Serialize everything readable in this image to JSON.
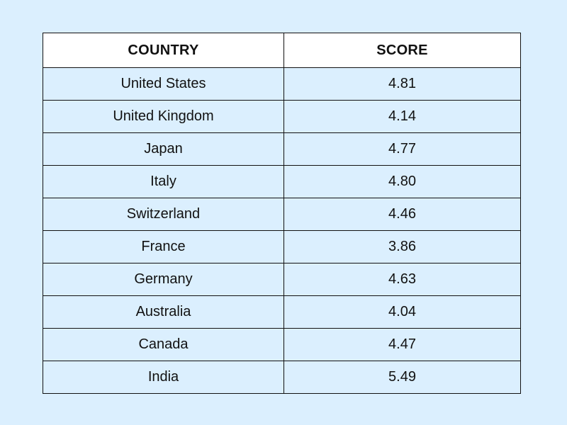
{
  "colors": {
    "background": "#dbeffe",
    "header_fill": "#ffffff",
    "border": "#111111",
    "text": "#111111"
  },
  "chart_data": {
    "type": "table",
    "columns": [
      "COUNTRY",
      "SCORE"
    ],
    "rows": [
      [
        "United States",
        "4.81"
      ],
      [
        "United Kingdom",
        "4.14"
      ],
      [
        "Japan",
        "4.77"
      ],
      [
        "Italy",
        "4.80"
      ],
      [
        "Switzerland",
        "4.46"
      ],
      [
        "France",
        "3.86"
      ],
      [
        "Germany",
        "4.63"
      ],
      [
        "Australia",
        "4.04"
      ],
      [
        "Canada",
        "4.47"
      ],
      [
        "India",
        "5.49"
      ]
    ]
  }
}
